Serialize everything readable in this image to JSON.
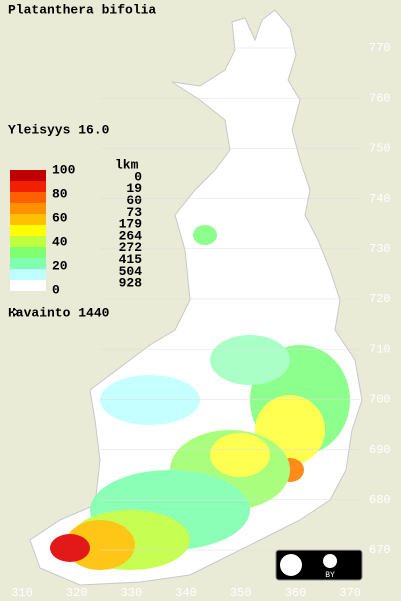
{
  "title": "Platanthera bifolia",
  "frequency": "Yleisyys  16.0",
  "legend": {
    "scale": [
      "100",
      "80",
      "60",
      "40",
      "20",
      "0"
    ],
    "count_header": "lkm",
    "counts": [
      "0",
      "19",
      "60",
      "73",
      "179",
      "264",
      "272",
      "415",
      "504",
      "928"
    ],
    "observations": "Havainto 1440"
  },
  "axes": {
    "north": [
      "770",
      "760",
      "750",
      "740",
      "730",
      "720",
      "710",
      "700",
      "690",
      "680",
      "670"
    ],
    "east": [
      "310",
      "320",
      "330",
      "340",
      "350",
      "360",
      "370"
    ]
  },
  "license": "BY"
}
